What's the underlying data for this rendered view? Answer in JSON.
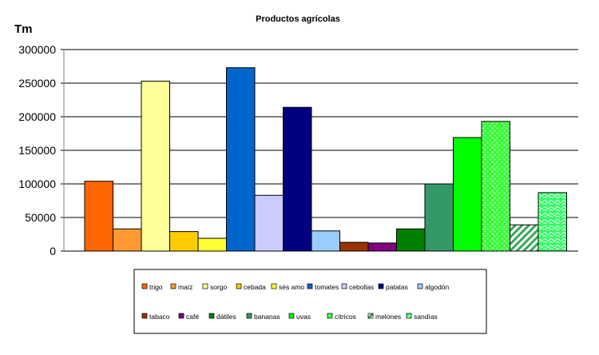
{
  "chart_data": {
    "type": "bar",
    "title": "Productos agrícolas",
    "ylabel": "Tm",
    "xlabel": "",
    "ylim": [
      0,
      300000
    ],
    "yticks": [
      "0",
      "50000",
      "100000",
      "150000",
      "200000",
      "250000",
      "300000"
    ],
    "ytick_values": [
      0,
      50000,
      100000,
      150000,
      200000,
      250000,
      300000
    ],
    "grid": true,
    "legend_position": "bottom",
    "categories": [
      "trigo",
      "maíz",
      "sorgo",
      "cebada",
      "sésamo",
      "tomates",
      "cebollas",
      "patatas",
      "algodón",
      "tabaco",
      "café",
      "dátiles",
      "bananas",
      "uvas",
      "cítricos",
      "melones",
      "sandías"
    ],
    "legend_labels": [
      "trigo",
      "maíz",
      "sorgo",
      "cebada",
      "sés amo",
      "tomates",
      "cebollas",
      "patatas",
      "algodón",
      "tabaco",
      "café",
      "dátiles",
      "bananas",
      "uvas",
      "cítricos",
      "melones",
      "sandías"
    ],
    "values": [
      104000,
      33000,
      253000,
      29000,
      19000,
      273000,
      83000,
      214000,
      30000,
      13000,
      12000,
      33000,
      100000,
      169000,
      193000,
      39000,
      87000
    ],
    "colors": [
      "#ff6600",
      "#ff9933",
      "#ffff99",
      "#ffcc00",
      "#ffff33",
      "#0066cc",
      "#ccccff",
      "#000080",
      "#99ccff",
      "#993300",
      "#800080",
      "#008000",
      "#339966",
      "#00ff00",
      "#33ff33",
      "#66cc66",
      "#33ff66"
    ],
    "patterns": [
      "solid",
      "solid",
      "solid",
      "solid",
      "solid",
      "solid",
      "solid",
      "solid",
      "solid",
      "solid",
      "solid",
      "solid",
      "solid",
      "solid",
      "dots",
      "stripes",
      "waves"
    ]
  }
}
